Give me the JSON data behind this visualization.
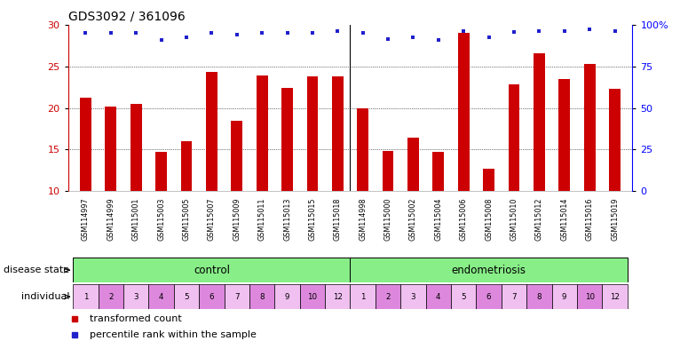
{
  "title": "GDS3092 / 361096",
  "samples": [
    "GSM114997",
    "GSM114999",
    "GSM115001",
    "GSM115003",
    "GSM115005",
    "GSM115007",
    "GSM115009",
    "GSM115011",
    "GSM115013",
    "GSM115015",
    "GSM115018",
    "GSM114998",
    "GSM115000",
    "GSM115002",
    "GSM115004",
    "GSM115006",
    "GSM115008",
    "GSM115010",
    "GSM115012",
    "GSM115014",
    "GSM115016",
    "GSM115019"
  ],
  "bar_values": [
    21.2,
    20.2,
    20.5,
    14.7,
    16.0,
    24.3,
    18.5,
    23.9,
    22.4,
    23.8,
    23.8,
    20.0,
    14.8,
    16.4,
    14.7,
    29.0,
    12.7,
    22.8,
    26.6,
    23.5,
    25.3,
    22.3
  ],
  "dot_values": [
    29.0,
    29.0,
    29.0,
    28.2,
    28.5,
    29.0,
    28.8,
    29.0,
    29.0,
    29.0,
    29.2,
    29.0,
    28.3,
    28.5,
    28.2,
    29.3,
    28.5,
    29.1,
    29.3,
    29.3,
    29.5,
    29.3
  ],
  "ylim": [
    10,
    30
  ],
  "yticks_left": [
    10,
    15,
    20,
    25,
    30
  ],
  "yticks_right": [
    0,
    25,
    50,
    75,
    100
  ],
  "bar_color": "#cc0000",
  "dot_color": "#2020cc",
  "control_color": "#88ee88",
  "endometriosis_color": "#88ee88",
  "ind_color_light": "#f0c0f0",
  "ind_color_dark": "#dd88dd",
  "control_label": "control",
  "endometriosis_label": "endometriosis",
  "disease_state_label": "disease state",
  "individual_label": "individual",
  "control_individuals": [
    "1",
    "2",
    "3",
    "4",
    "5",
    "6",
    "7",
    "8",
    "9",
    "10",
    "12"
  ],
  "endometriosis_individuals": [
    "1",
    "2",
    "3",
    "4",
    "5",
    "6",
    "7",
    "8",
    "9",
    "10",
    "12"
  ],
  "n_control": 11,
  "n_endometriosis": 11,
  "legend_bar_label": "transformed count",
  "legend_dot_label": "percentile rank within the sample",
  "background_color": "#ffffff",
  "title_fontsize": 10,
  "tick_label_fontsize": 5.8,
  "label_fontsize": 8.5,
  "row_label_fontsize": 8
}
